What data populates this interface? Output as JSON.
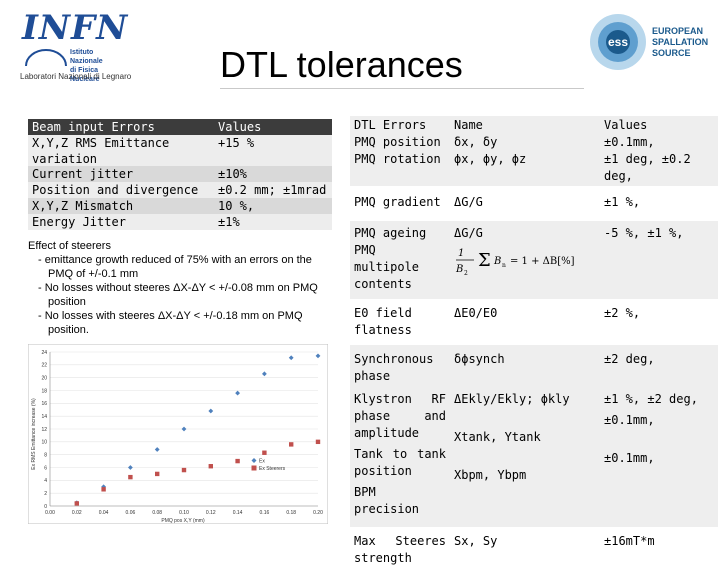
{
  "header": {
    "logo_left": {
      "word": "INFN",
      "line1": "Istituto Nazionale",
      "line2": "di Fisica Nucleare",
      "lab": "Laboratori Nazionali di Legnaro"
    },
    "logo_right": {
      "line1": "EUROPEAN",
      "line2": "SPALLATION",
      "line3": "SOURCE"
    },
    "title": "DTL tolerances"
  },
  "beam_table": {
    "headers": [
      "Beam input Errors",
      "Values"
    ],
    "rows": [
      {
        "label": "X,Y,Z RMS Emittance variation",
        "value": "+15 %"
      }
    ]
  },
  "jitter_table": {
    "rows": [
      {
        "label": "Current jitter",
        "value": "±10%"
      },
      {
        "label": "Position and divergence",
        "value": "±0.2 mm; ±1mrad"
      },
      {
        "label": "X,Y,Z Mismatch",
        "value": "10 %,"
      },
      {
        "label": "Energy Jitter",
        "value": "±1%"
      }
    ]
  },
  "steerers": {
    "heading": "Effect of steerers",
    "items": [
      "- emittance growth reduced of 75% with an errors on the PMQ of +/-0.1 mm",
      "- No losses without steeres ΔX-ΔY < +/-0.08 mm on PMQ position",
      "- No losses with steeres ΔX-ΔY < +/-0.18 mm on PMQ position."
    ]
  },
  "chart_data": {
    "type": "scatter",
    "title": "",
    "xlabel": "PMQ pos X,Y (mm)",
    "ylabel": "Ex RMS Emittance increase (%)",
    "xlim": [
      0,
      0.2
    ],
    "ylim": [
      0,
      24
    ],
    "x_ticks": [
      "0.00",
      "0.02",
      "0.04",
      "0.06",
      "0.08",
      "0.10",
      "0.12",
      "0.14",
      "0.16",
      "0.18",
      "0.20"
    ],
    "y_ticks": [
      "0",
      "2",
      "4",
      "6",
      "8",
      "10",
      "12",
      "14",
      "16",
      "18",
      "20",
      "22",
      "24"
    ],
    "legend_position": "right",
    "series": [
      {
        "name": "Ex",
        "color": "#4f81bd",
        "marker": "diamond",
        "x": [
          0.02,
          0.04,
          0.06,
          0.08,
          0.1,
          0.12,
          0.14,
          0.16,
          0.18,
          0.2
        ],
        "y": [
          0.5,
          3.0,
          6.0,
          8.8,
          12.0,
          14.8,
          17.6,
          20.6,
          23.1,
          23.4
        ]
      },
      {
        "name": "Ex Steerers",
        "color": "#c0504d",
        "marker": "square",
        "x": [
          0.02,
          0.04,
          0.06,
          0.08,
          0.1,
          0.12,
          0.14,
          0.16,
          0.18,
          0.2
        ],
        "y": [
          0.4,
          2.6,
          4.5,
          5.0,
          5.6,
          6.2,
          7.0,
          8.3,
          9.6,
          10.0
        ]
      }
    ]
  },
  "dtl_table": {
    "header": {
      "c1": "DTL Errors",
      "c2": "Name",
      "c3": "Values"
    },
    "rows": [
      {
        "c1": "PMQ position",
        "c2": "δx, δy",
        "c3": "±0.1mm,"
      },
      {
        "c1": "PMQ rotation",
        "c2": "ϕx, ϕy, ϕz",
        "c3": "±1 deg, ±0.2 deg,"
      },
      {
        "c1": "PMQ gradient",
        "c2": "ΔG/G",
        "c3": "±1 %,"
      },
      {
        "c1": "PMQ ageing PMQ multipole contents",
        "c2": "ΔG/G",
        "c3": "-5 %, ±1 %,"
      },
      {
        "c1": "E0 field flatness",
        "c2": "ΔE0/E0",
        "c3": "±2 %,"
      },
      {
        "c1": "Synchronous phase",
        "c2": "δϕsynch",
        "c3": "±2 deg,"
      },
      {
        "c1": "Klystron RF phase and amplitude",
        "c2": "ΔEkly/Ekly; ϕkly",
        "c3": "±1 %, ±2 deg,"
      },
      {
        "c1": "Tank to tank position",
        "c2": "Xtank, Ytank",
        "c3": "±0.1mm,"
      },
      {
        "c1": "BPM precision",
        "c2": "Xbpm, Ybpm",
        "c3": "±0.1mm,"
      },
      {
        "c1": "Max Steeres strength",
        "c2": "Sx, Sy",
        "c3": "±16mT*m"
      }
    ],
    "formula": "B_n / B_2 Σ B_n = 1 + ΔB[%]"
  },
  "colors": {
    "header_bar": "#3c3c3c",
    "band_light": "#ededed",
    "band_mid": "#d9d9d9",
    "infn_blue": "#1f4d96",
    "ess_blue": "#1b5a8c"
  }
}
